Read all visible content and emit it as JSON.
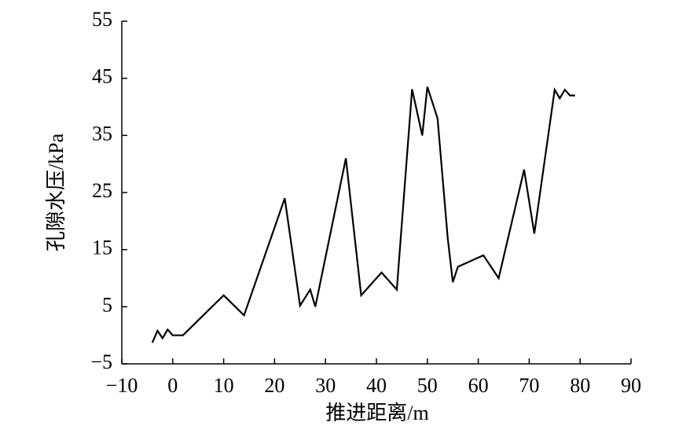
{
  "chart_data": {
    "type": "line",
    "x_label": "推进距离/m",
    "y_label": "孔隙水压/kPa",
    "x": [
      -4,
      -3,
      -2,
      -1,
      0,
      2,
      10,
      14,
      22,
      25,
      27,
      28,
      34,
      37,
      41,
      44,
      47,
      49,
      50,
      52,
      54,
      55,
      56,
      61,
      64,
      69,
      71,
      75,
      76,
      77,
      78,
      79
    ],
    "values": [
      -1.3,
      0.8,
      -0.5,
      1,
      0,
      0,
      7,
      3.5,
      24,
      5.2,
      8,
      5,
      31,
      7,
      11,
      8,
      43.1,
      35,
      43.5,
      38,
      17,
      9.3,
      12,
      14,
      10,
      29,
      17.8,
      43,
      41.5,
      43,
      42,
      42
    ],
    "color": "#000000",
    "xlim": [
      -10,
      90
    ],
    "ylim": [
      -5,
      55
    ],
    "xticks": [
      {
        "value": -10,
        "label": "−10"
      },
      0,
      10,
      20,
      30,
      40,
      50,
      60,
      70,
      80,
      90
    ],
    "yticks": [
      {
        "value": -5,
        "label": "−5"
      },
      5,
      15,
      25,
      35,
      45,
      55
    ],
    "grid": false
  }
}
